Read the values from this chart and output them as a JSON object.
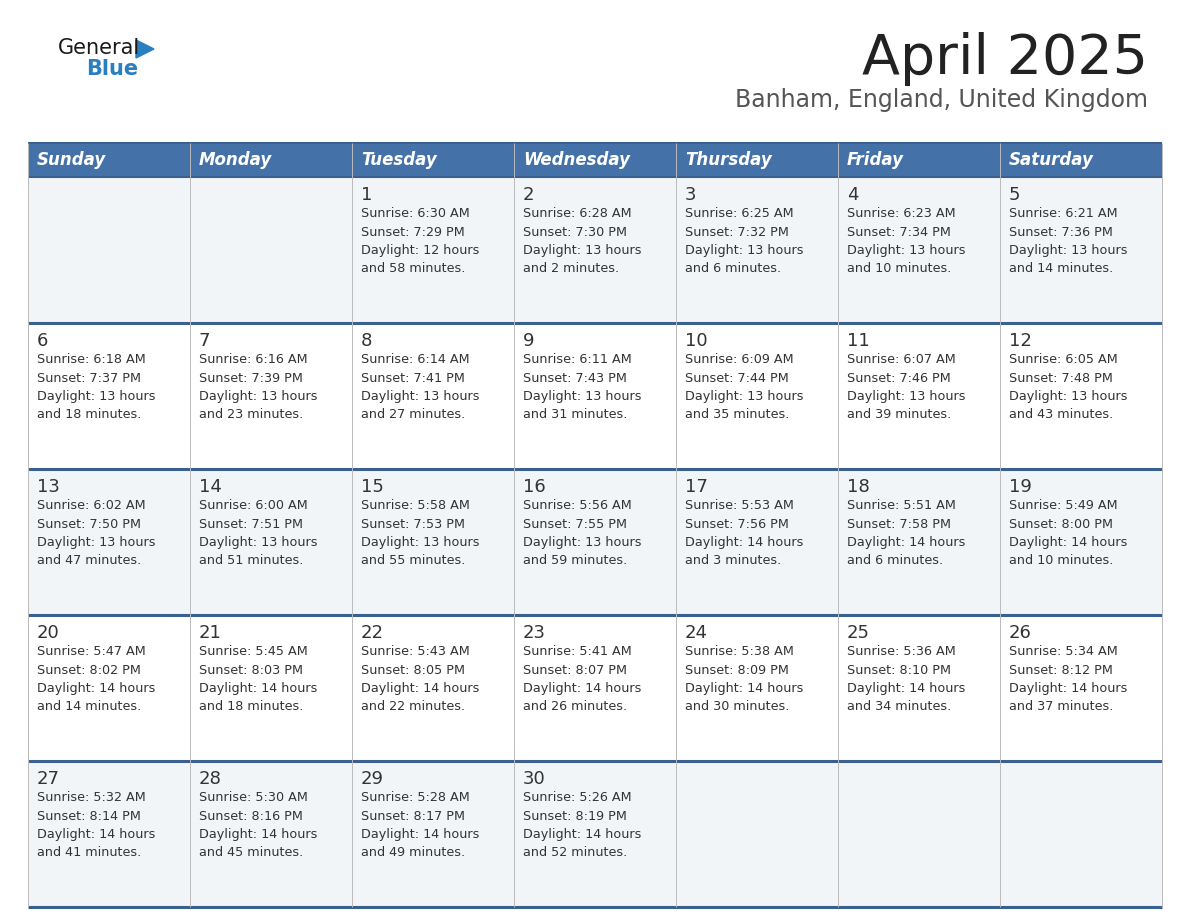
{
  "title": "April 2025",
  "subtitle": "Banham, England, United Kingdom",
  "days_of_week": [
    "Sunday",
    "Monday",
    "Tuesday",
    "Wednesday",
    "Thursday",
    "Friday",
    "Saturday"
  ],
  "header_bg": "#4472a8",
  "header_text": "#ffffff",
  "row_bg_light": "#f2f5f8",
  "row_bg_white": "#ffffff",
  "cell_text": "#333333",
  "border_color": "#3a6090",
  "grid_color": "#bbbbbb",
  "title_color": "#222222",
  "subtitle_color": "#555555",
  "logo_general_color": "#1a1a1a",
  "logo_blue_color": "#2a7fc1",
  "calendar_data": [
    [
      {
        "day": "",
        "sunrise": "",
        "sunset": "",
        "daylight_h": "",
        "daylight_m": ""
      },
      {
        "day": "",
        "sunrise": "",
        "sunset": "",
        "daylight_h": "",
        "daylight_m": ""
      },
      {
        "day": "1",
        "sunrise": "6:30 AM",
        "sunset": "7:29 PM",
        "daylight_h": "12",
        "daylight_m": "58"
      },
      {
        "day": "2",
        "sunrise": "6:28 AM",
        "sunset": "7:30 PM",
        "daylight_h": "13",
        "daylight_m": "2"
      },
      {
        "day": "3",
        "sunrise": "6:25 AM",
        "sunset": "7:32 PM",
        "daylight_h": "13",
        "daylight_m": "6"
      },
      {
        "day": "4",
        "sunrise": "6:23 AM",
        "sunset": "7:34 PM",
        "daylight_h": "13",
        "daylight_m": "10"
      },
      {
        "day": "5",
        "sunrise": "6:21 AM",
        "sunset": "7:36 PM",
        "daylight_h": "13",
        "daylight_m": "14"
      }
    ],
    [
      {
        "day": "6",
        "sunrise": "6:18 AM",
        "sunset": "7:37 PM",
        "daylight_h": "13",
        "daylight_m": "18"
      },
      {
        "day": "7",
        "sunrise": "6:16 AM",
        "sunset": "7:39 PM",
        "daylight_h": "13",
        "daylight_m": "23"
      },
      {
        "day": "8",
        "sunrise": "6:14 AM",
        "sunset": "7:41 PM",
        "daylight_h": "13",
        "daylight_m": "27"
      },
      {
        "day": "9",
        "sunrise": "6:11 AM",
        "sunset": "7:43 PM",
        "daylight_h": "13",
        "daylight_m": "31"
      },
      {
        "day": "10",
        "sunrise": "6:09 AM",
        "sunset": "7:44 PM",
        "daylight_h": "13",
        "daylight_m": "35"
      },
      {
        "day": "11",
        "sunrise": "6:07 AM",
        "sunset": "7:46 PM",
        "daylight_h": "13",
        "daylight_m": "39"
      },
      {
        "day": "12",
        "sunrise": "6:05 AM",
        "sunset": "7:48 PM",
        "daylight_h": "13",
        "daylight_m": "43"
      }
    ],
    [
      {
        "day": "13",
        "sunrise": "6:02 AM",
        "sunset": "7:50 PM",
        "daylight_h": "13",
        "daylight_m": "47"
      },
      {
        "day": "14",
        "sunrise": "6:00 AM",
        "sunset": "7:51 PM",
        "daylight_h": "13",
        "daylight_m": "51"
      },
      {
        "day": "15",
        "sunrise": "5:58 AM",
        "sunset": "7:53 PM",
        "daylight_h": "13",
        "daylight_m": "55"
      },
      {
        "day": "16",
        "sunrise": "5:56 AM",
        "sunset": "7:55 PM",
        "daylight_h": "13",
        "daylight_m": "59"
      },
      {
        "day": "17",
        "sunrise": "5:53 AM",
        "sunset": "7:56 PM",
        "daylight_h": "14",
        "daylight_m": "3"
      },
      {
        "day": "18",
        "sunrise": "5:51 AM",
        "sunset": "7:58 PM",
        "daylight_h": "14",
        "daylight_m": "6"
      },
      {
        "day": "19",
        "sunrise": "5:49 AM",
        "sunset": "8:00 PM",
        "daylight_h": "14",
        "daylight_m": "10"
      }
    ],
    [
      {
        "day": "20",
        "sunrise": "5:47 AM",
        "sunset": "8:02 PM",
        "daylight_h": "14",
        "daylight_m": "14"
      },
      {
        "day": "21",
        "sunrise": "5:45 AM",
        "sunset": "8:03 PM",
        "daylight_h": "14",
        "daylight_m": "18"
      },
      {
        "day": "22",
        "sunrise": "5:43 AM",
        "sunset": "8:05 PM",
        "daylight_h": "14",
        "daylight_m": "22"
      },
      {
        "day": "23",
        "sunrise": "5:41 AM",
        "sunset": "8:07 PM",
        "daylight_h": "14",
        "daylight_m": "26"
      },
      {
        "day": "24",
        "sunrise": "5:38 AM",
        "sunset": "8:09 PM",
        "daylight_h": "14",
        "daylight_m": "30"
      },
      {
        "day": "25",
        "sunrise": "5:36 AM",
        "sunset": "8:10 PM",
        "daylight_h": "14",
        "daylight_m": "34"
      },
      {
        "day": "26",
        "sunrise": "5:34 AM",
        "sunset": "8:12 PM",
        "daylight_h": "14",
        "daylight_m": "37"
      }
    ],
    [
      {
        "day": "27",
        "sunrise": "5:32 AM",
        "sunset": "8:14 PM",
        "daylight_h": "14",
        "daylight_m": "41"
      },
      {
        "day": "28",
        "sunrise": "5:30 AM",
        "sunset": "8:16 PM",
        "daylight_h": "14",
        "daylight_m": "45"
      },
      {
        "day": "29",
        "sunrise": "5:28 AM",
        "sunset": "8:17 PM",
        "daylight_h": "14",
        "daylight_m": "49"
      },
      {
        "day": "30",
        "sunrise": "5:26 AM",
        "sunset": "8:19 PM",
        "daylight_h": "14",
        "daylight_m": "52"
      },
      {
        "day": "",
        "sunrise": "",
        "sunset": "",
        "daylight_h": "",
        "daylight_m": ""
      },
      {
        "day": "",
        "sunrise": "",
        "sunset": "",
        "daylight_h": "",
        "daylight_m": ""
      },
      {
        "day": "",
        "sunrise": "",
        "sunset": "",
        "daylight_h": "",
        "daylight_m": ""
      }
    ]
  ]
}
